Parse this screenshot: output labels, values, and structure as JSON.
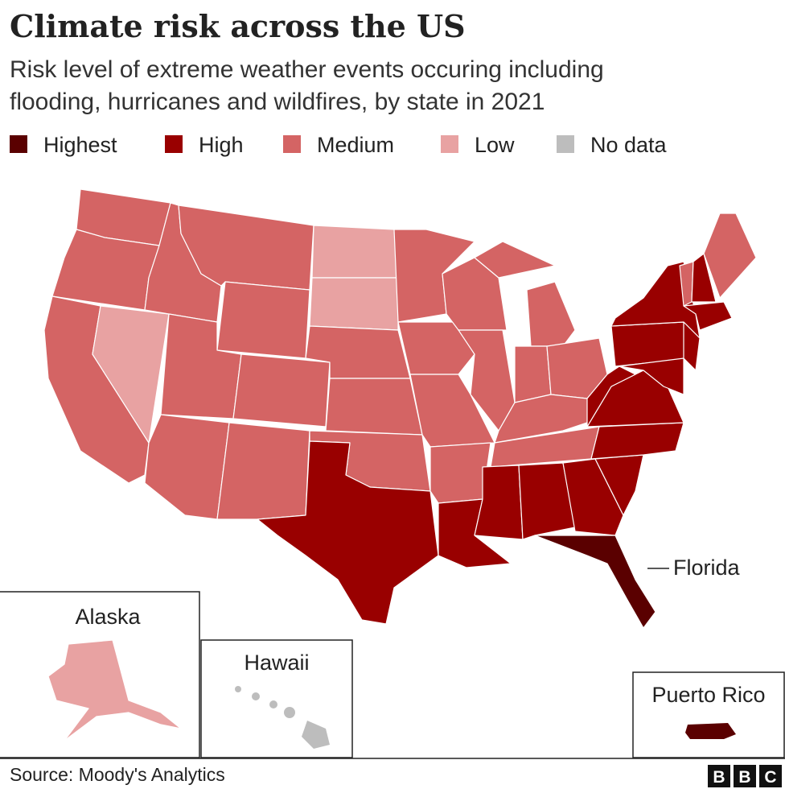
{
  "title": "Climate risk across the US",
  "subtitle": [
    "Risk level of extreme weather events occuring including",
    "flooding, hurricanes and wildfires, by state in 2021"
  ],
  "legend": [
    {
      "label": "Highest",
      "color": "#5a0000"
    },
    {
      "label": "High",
      "color": "#990000"
    },
    {
      "label": "Medium",
      "color": "#d46464"
    },
    {
      "label": "Low",
      "color": "#e8a2a2"
    },
    {
      "label": "No data",
      "color": "#bdbdbd"
    }
  ],
  "callout": "Florida",
  "insets": [
    "Alaska",
    "Hawaii",
    "Puerto Rico"
  ],
  "source": "Source: Moody's Analytics",
  "logo": [
    "B",
    "B",
    "C"
  ]
}
